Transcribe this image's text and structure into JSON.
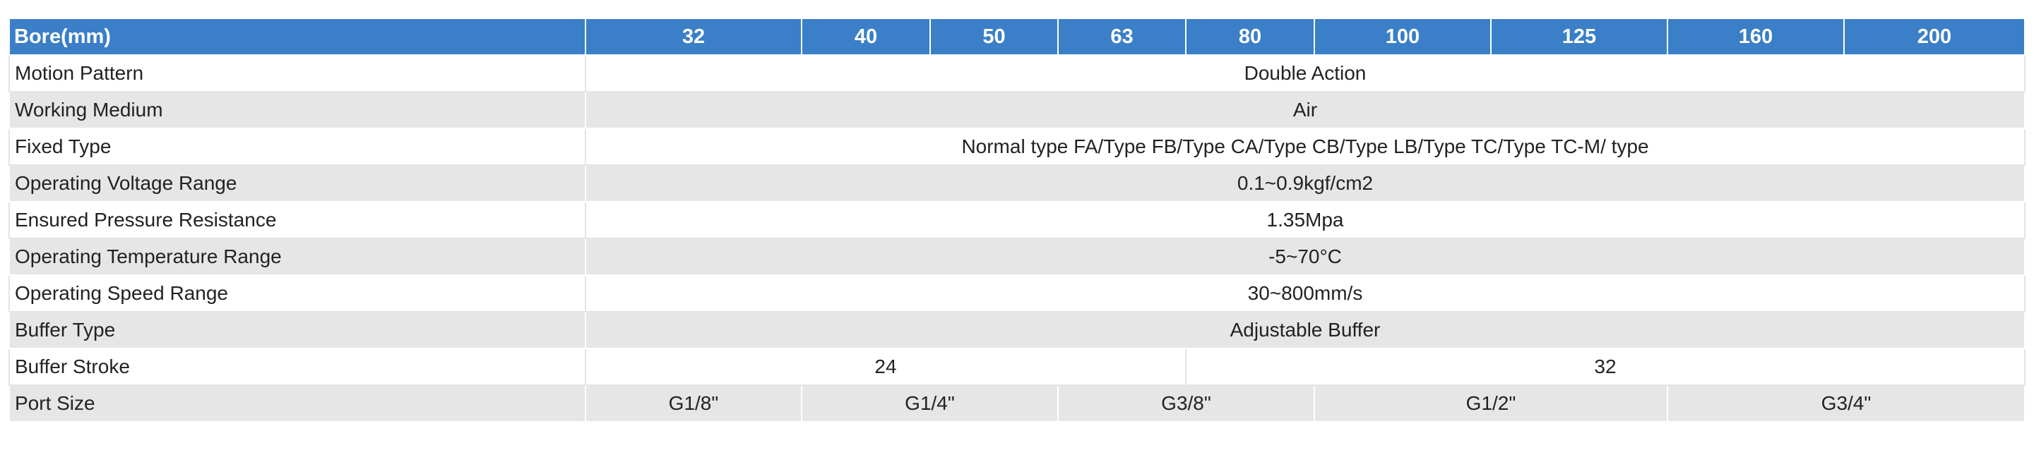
{
  "table": {
    "header": {
      "label": "Bore(mm)",
      "bores": [
        "32",
        "40",
        "50",
        "63",
        "80",
        "100",
        "125",
        "160",
        "200"
      ]
    },
    "rows": [
      {
        "label": "Motion Pattern",
        "value": "Double Action"
      },
      {
        "label": "Working Medium",
        "value": "Air"
      },
      {
        "label": "Fixed Type",
        "value": "Normal type FA/Type FB/Type CA/Type CB/Type LB/Type TC/Type TC-M/ type"
      },
      {
        "label": "Operating Voltage Range",
        "value": "0.1~0.9kgf/cm2"
      },
      {
        "label": "Ensured Pressure Resistance",
        "value": "1.35Mpa"
      },
      {
        "label": "Operating Temperature Range",
        "value": "-5~70°C"
      },
      {
        "label": "Operating Speed Range",
        "value": "30~800mm/s"
      },
      {
        "label": "Buffer Type",
        "value": "Adjustable Buffer"
      }
    ],
    "buffer_stroke": {
      "label": "Buffer Stroke",
      "values": [
        "24",
        "32"
      ]
    },
    "port_size": {
      "label": "Port Size",
      "values": [
        "G1/8\"",
        "G1/4\"",
        "G3/8\"",
        "G1/2\"",
        "G3/4\""
      ]
    }
  },
  "colors": {
    "header_bg": "#3a7fc7",
    "header_text": "#ffffff",
    "row_alt_bg": "#e6e6e6",
    "row_bg": "#ffffff"
  }
}
